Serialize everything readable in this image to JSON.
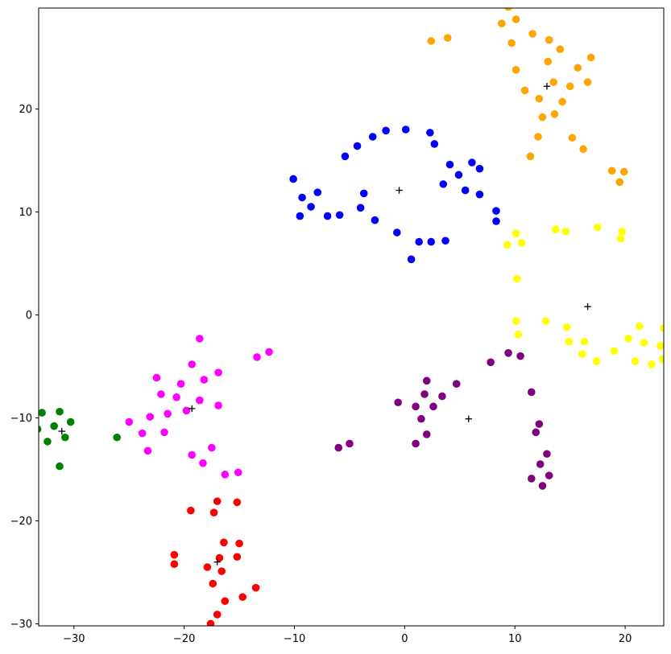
{
  "chart_data": {
    "type": "scatter",
    "title": "",
    "xlabel": "",
    "ylabel": "",
    "xlim": [
      -33.2,
      23.5
    ],
    "ylim": [
      -30.2,
      29.8
    ],
    "x_ticks": [
      -30,
      -20,
      -10,
      0,
      10,
      20
    ],
    "y_ticks": [
      -30,
      -20,
      -10,
      0,
      10,
      20
    ],
    "x_tick_labels": [
      "−30",
      "−20",
      "−10",
      "0",
      "10",
      "20"
    ],
    "y_tick_labels": [
      "−30",
      "−20",
      "−10",
      "0",
      "10",
      "20"
    ],
    "grid": false,
    "legend": false,
    "series": [
      {
        "color": "#0000ff",
        "points": [
          [
            -10.1,
            13.2
          ],
          [
            -9.5,
            9.6
          ],
          [
            -9.3,
            11.4
          ],
          [
            -8.5,
            10.5
          ],
          [
            -7.9,
            11.9
          ],
          [
            -7.0,
            9.6
          ],
          [
            -5.9,
            9.7
          ],
          [
            -5.4,
            15.4
          ],
          [
            -4.3,
            16.4
          ],
          [
            -4.0,
            10.4
          ],
          [
            -3.7,
            11.8
          ],
          [
            -2.9,
            17.3
          ],
          [
            -2.7,
            9.2
          ],
          [
            -1.7,
            17.9
          ],
          [
            -0.7,
            8.0
          ],
          [
            0.1,
            18.0
          ],
          [
            0.6,
            5.4
          ],
          [
            1.3,
            7.1
          ],
          [
            2.3,
            17.7
          ],
          [
            2.4,
            7.1
          ],
          [
            2.7,
            16.6
          ],
          [
            3.5,
            12.7
          ],
          [
            3.7,
            7.2
          ],
          [
            4.1,
            14.6
          ],
          [
            4.9,
            13.6
          ],
          [
            5.5,
            12.1
          ],
          [
            6.1,
            14.8
          ],
          [
            6.8,
            14.2
          ],
          [
            6.8,
            11.7
          ],
          [
            8.3,
            10.1
          ],
          [
            8.3,
            9.1
          ]
        ]
      },
      {
        "color": "#ffa500",
        "points": [
          [
            2.4,
            26.6
          ],
          [
            3.9,
            26.9
          ],
          [
            8.8,
            28.3
          ],
          [
            9.4,
            29.9
          ],
          [
            9.7,
            26.4
          ],
          [
            10.1,
            28.7
          ],
          [
            10.1,
            23.8
          ],
          [
            10.9,
            21.8
          ],
          [
            11.4,
            15.4
          ],
          [
            11.6,
            27.3
          ],
          [
            12.1,
            17.3
          ],
          [
            12.2,
            21.0
          ],
          [
            12.5,
            19.2
          ],
          [
            13.0,
            24.6
          ],
          [
            13.1,
            26.7
          ],
          [
            13.5,
            22.6
          ],
          [
            13.6,
            19.5
          ],
          [
            14.1,
            25.8
          ],
          [
            14.3,
            20.7
          ],
          [
            15.0,
            22.2
          ],
          [
            15.2,
            17.2
          ],
          [
            15.7,
            24.0
          ],
          [
            16.2,
            16.1
          ],
          [
            16.6,
            22.6
          ],
          [
            16.9,
            25.0
          ],
          [
            18.8,
            14.0
          ],
          [
            19.5,
            12.9
          ],
          [
            19.9,
            13.9
          ]
        ]
      },
      {
        "color": "#ffff00",
        "points": [
          [
            9.3,
            6.8
          ],
          [
            10.1,
            -0.6
          ],
          [
            10.1,
            7.9
          ],
          [
            10.2,
            3.5
          ],
          [
            10.3,
            -1.9
          ],
          [
            10.6,
            7.0
          ],
          [
            12.8,
            -0.6
          ],
          [
            13.7,
            8.3
          ],
          [
            14.6,
            8.1
          ],
          [
            14.7,
            -1.2
          ],
          [
            14.9,
            -2.6
          ],
          [
            16.1,
            -3.8
          ],
          [
            16.3,
            -2.6
          ],
          [
            17.4,
            -4.5
          ],
          [
            17.5,
            8.5
          ],
          [
            19.0,
            -3.5
          ],
          [
            19.6,
            7.4
          ],
          [
            19.7,
            8.1
          ],
          [
            20.3,
            -2.3
          ],
          [
            20.9,
            -4.5
          ],
          [
            21.3,
            -1.1
          ],
          [
            21.7,
            -2.7
          ],
          [
            22.4,
            -4.8
          ],
          [
            23.2,
            -3.0
          ],
          [
            23.5,
            -1.3
          ],
          [
            23.4,
            -4.3
          ]
        ]
      },
      {
        "color": "#800080",
        "points": [
          [
            -6.0,
            -12.9
          ],
          [
            -5.0,
            -12.5
          ],
          [
            -0.6,
            -8.5
          ],
          [
            1.0,
            -12.5
          ],
          [
            1.0,
            -8.9
          ],
          [
            1.5,
            -10.1
          ],
          [
            1.8,
            -7.7
          ],
          [
            2.0,
            -6.4
          ],
          [
            2.0,
            -11.6
          ],
          [
            2.6,
            -8.9
          ],
          [
            3.4,
            -7.9
          ],
          [
            4.7,
            -6.7
          ],
          [
            7.8,
            -4.6
          ],
          [
            9.4,
            -3.7
          ],
          [
            10.5,
            -4.0
          ],
          [
            11.5,
            -7.5
          ],
          [
            11.5,
            -15.9
          ],
          [
            11.9,
            -11.4
          ],
          [
            12.2,
            -10.6
          ],
          [
            12.3,
            -14.5
          ],
          [
            12.5,
            -16.6
          ],
          [
            12.9,
            -13.5
          ],
          [
            13.1,
            -15.6
          ]
        ]
      },
      {
        "color": "#ff00ff",
        "points": [
          [
            -25.0,
            -10.4
          ],
          [
            -23.8,
            -11.5
          ],
          [
            -23.3,
            -13.2
          ],
          [
            -23.1,
            -9.9
          ],
          [
            -22.5,
            -6.1
          ],
          [
            -22.1,
            -7.7
          ],
          [
            -21.8,
            -11.4
          ],
          [
            -21.5,
            -9.6
          ],
          [
            -20.7,
            -8.0
          ],
          [
            -20.3,
            -6.7
          ],
          [
            -19.8,
            -9.3
          ],
          [
            -19.3,
            -13.6
          ],
          [
            -19.3,
            -4.8
          ],
          [
            -18.6,
            -2.3
          ],
          [
            -18.6,
            -8.3
          ],
          [
            -18.3,
            -14.4
          ],
          [
            -18.2,
            -6.3
          ],
          [
            -17.5,
            -12.9
          ],
          [
            -16.9,
            -5.6
          ],
          [
            -16.9,
            -8.8
          ],
          [
            -16.3,
            -15.5
          ],
          [
            -15.1,
            -15.3
          ],
          [
            -13.4,
            -4.1
          ],
          [
            -12.3,
            -3.6
          ]
        ]
      },
      {
        "color": "#008000",
        "points": [
          [
            -33.3,
            -11.1
          ],
          [
            -32.9,
            -9.5
          ],
          [
            -32.4,
            -12.3
          ],
          [
            -31.8,
            -10.8
          ],
          [
            -31.3,
            -9.4
          ],
          [
            -31.3,
            -14.7
          ],
          [
            -30.8,
            -11.9
          ],
          [
            -30.3,
            -10.4
          ],
          [
            -26.1,
            -11.9
          ]
        ]
      },
      {
        "color": "#ff0000",
        "points": [
          [
            -20.9,
            -23.3
          ],
          [
            -20.9,
            -24.2
          ],
          [
            -19.4,
            -19.0
          ],
          [
            -17.9,
            -24.5
          ],
          [
            -17.6,
            -30.0
          ],
          [
            -17.4,
            -26.1
          ],
          [
            -17.3,
            -19.2
          ],
          [
            -17.0,
            -29.1
          ],
          [
            -17.0,
            -18.1
          ],
          [
            -16.8,
            -23.6
          ],
          [
            -16.6,
            -24.9
          ],
          [
            -16.4,
            -22.1
          ],
          [
            -16.3,
            -27.8
          ],
          [
            -15.2,
            -23.5
          ],
          [
            -15.2,
            -18.2
          ],
          [
            -15.0,
            -22.2
          ],
          [
            -14.7,
            -27.4
          ],
          [
            -13.5,
            -26.5
          ]
        ]
      }
    ],
    "centroids": [
      [
        -0.5,
        12.1
      ],
      [
        12.9,
        22.2
      ],
      [
        16.6,
        0.8
      ],
      [
        5.8,
        -10.1
      ],
      [
        -19.3,
        -9.1
      ],
      [
        -31.1,
        -11.3
      ],
      [
        -17.0,
        -24.0
      ]
    ]
  }
}
